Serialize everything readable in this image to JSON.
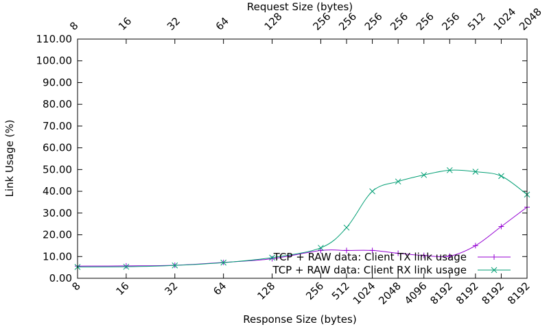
{
  "chart_data": {
    "type": "line",
    "xlabel": "Response Size (bytes)",
    "x2label": "Request Size (bytes)",
    "ylabel": "Link Usage (%)",
    "ylim": [
      0,
      110
    ],
    "yticks": [
      "0.00",
      "10.00",
      "20.00",
      "30.00",
      "40.00",
      "50.00",
      "60.00",
      "70.00",
      "80.00",
      "90.00",
      "100.00",
      "110.00"
    ],
    "grid": false,
    "legend_position": "bottom-right",
    "categories": [
      {
        "response": "8",
        "request": "8"
      },
      {
        "response": "16",
        "request": "16"
      },
      {
        "response": "32",
        "request": "32"
      },
      {
        "response": "64",
        "request": "64"
      },
      {
        "response": "128",
        "request": "128"
      },
      {
        "response": "256",
        "request": "256"
      },
      {
        "response": "512",
        "request": "256"
      },
      {
        "response": "1024",
        "request": "256"
      },
      {
        "response": "2048",
        "request": "256"
      },
      {
        "response": "4096",
        "request": "256"
      },
      {
        "response": "8192",
        "request": "256"
      },
      {
        "response": "8192",
        "request": "512"
      },
      {
        "response": "8192",
        "request": "1024"
      },
      {
        "response": "8192",
        "request": "2048"
      }
    ],
    "x_positions": [
      0,
      1,
      2,
      3,
      4,
      5,
      5.53,
      6.06,
      6.59,
      7.12,
      7.65,
      8.18,
      8.71,
      9.24
    ],
    "series": [
      {
        "name": "TCP + RAW data: Client TX link usage",
        "color": "#9400d3",
        "marker": "plus",
        "values": [
          5.6,
          5.7,
          6.0,
          7.3,
          9.0,
          12.8,
          12.8,
          12.8,
          11.5,
          10.5,
          10.2,
          15.0,
          23.8,
          32.7
        ]
      },
      {
        "name": "TCP + RAW data: Client RX link usage",
        "color": "#009e73",
        "marker": "x",
        "values": [
          5.2,
          5.3,
          5.9,
          7.2,
          9.5,
          14.0,
          23.3,
          40.0,
          44.5,
          47.5,
          49.7,
          49.0,
          47.0,
          38.5
        ]
      }
    ]
  }
}
